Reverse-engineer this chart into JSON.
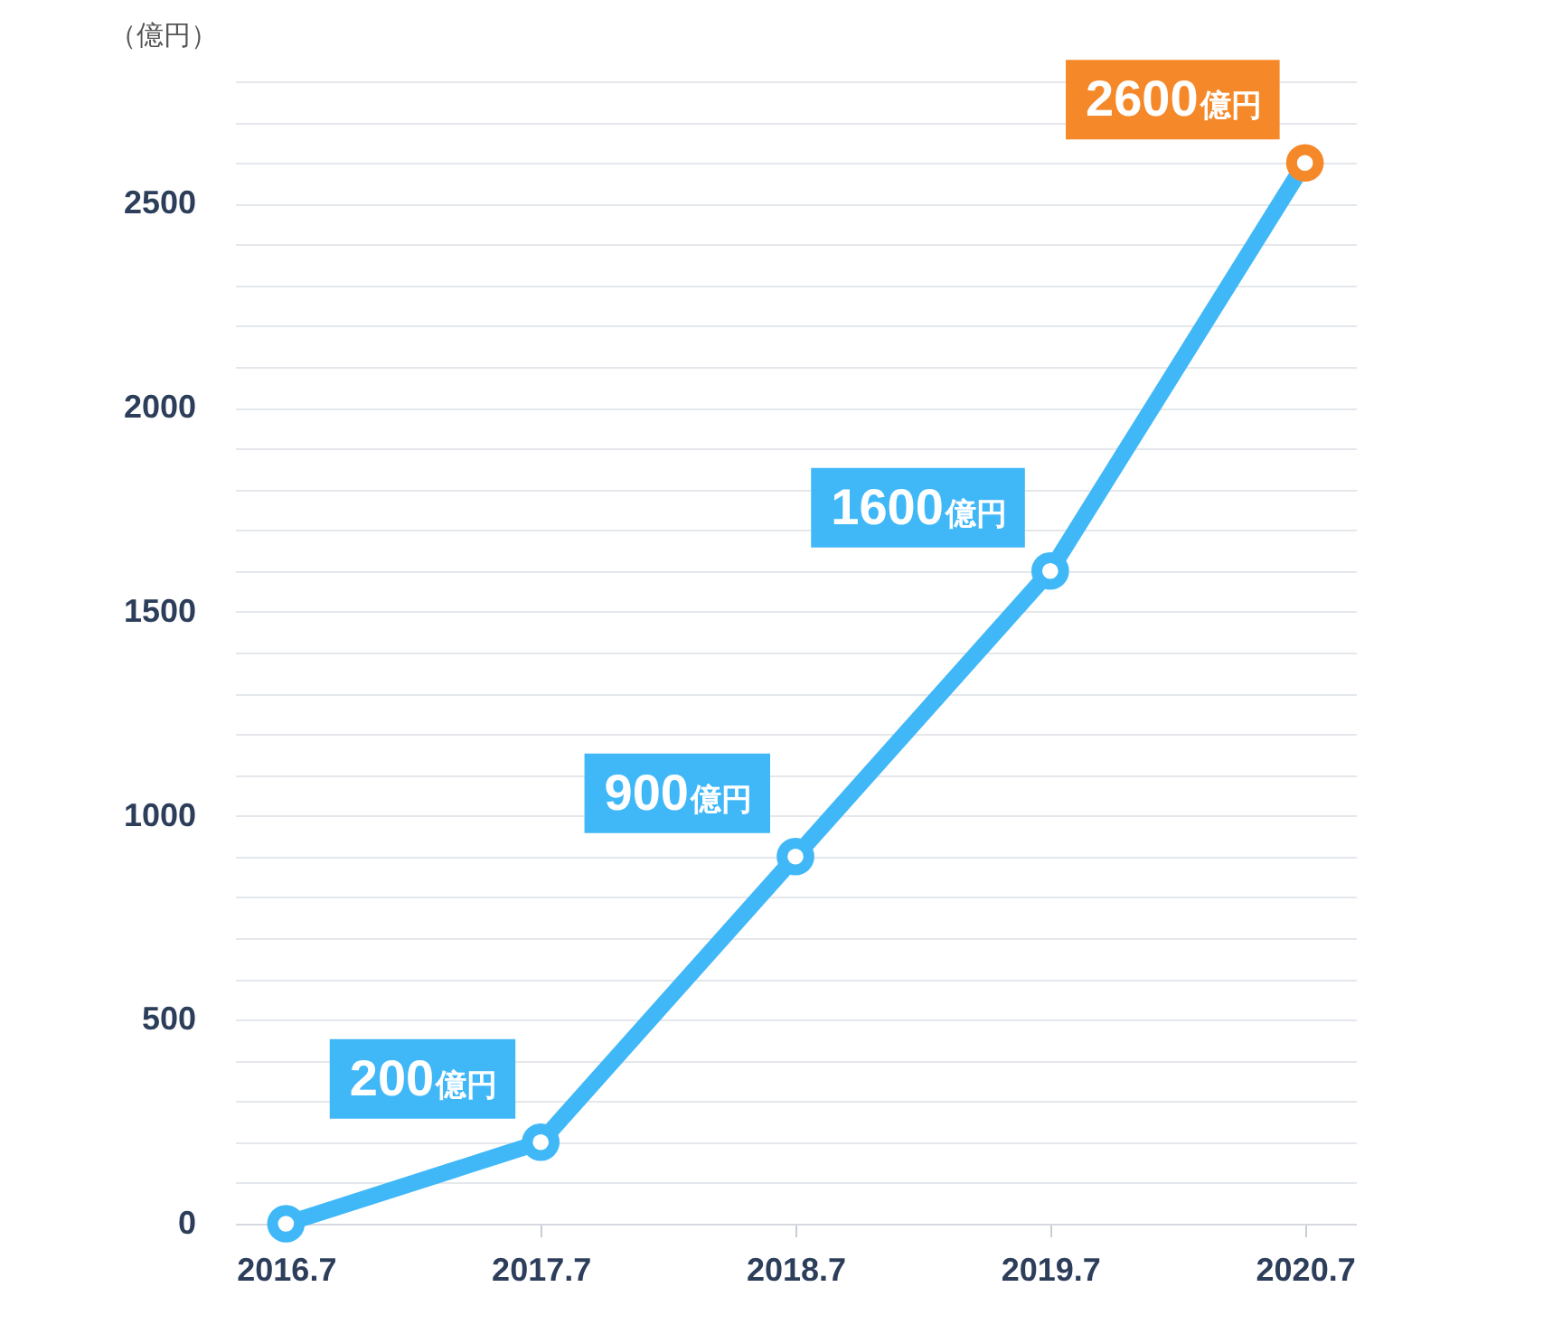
{
  "chart_data": {
    "type": "line",
    "ylabel": "（億円）",
    "categories": [
      "2016.7",
      "2017.7",
      "2018.7",
      "2019.7",
      "2020.7"
    ],
    "series": [
      {
        "color": "#40b8f8",
        "colors": [
          "#40b8f8",
          "#40b8f8",
          "#40b8f8",
          "#40b8f8",
          "#f5892a"
        ],
        "values": [
          0,
          200,
          900,
          1600,
          2600
        ],
        "value_labels": [
          null,
          "200億円",
          "900億円",
          "1600億円",
          "2600億円"
        ]
      }
    ],
    "ylim": [
      0,
      2800
    ],
    "yticks": [
      0,
      {
        "value": 100,
        "label": null
      },
      {
        "value": 200,
        "label": null
      },
      {
        "value": 300,
        "label": null
      },
      {
        "value": 400,
        "label": null
      },
      500,
      {
        "value": 600,
        "label": null
      },
      {
        "value": 700,
        "label": null
      },
      {
        "value": 800,
        "label": null
      },
      {
        "value": 900,
        "label": null
      },
      1000,
      {
        "value": 1100,
        "label": null
      },
      {
        "value": 1200,
        "label": null
      },
      {
        "value": 1300,
        "label": null
      },
      {
        "value": 1400,
        "label": null
      },
      1500,
      {
        "value": 1600,
        "label": null
      },
      {
        "value": 1700,
        "label": null
      },
      {
        "value": 1800,
        "label": null
      },
      {
        "value": 1900,
        "label": null
      },
      2000,
      {
        "value": 2100,
        "label": null
      },
      {
        "value": 2200,
        "label": null
      },
      {
        "value": 2300,
        "label": null
      },
      {
        "value": 2400,
        "label": null
      },
      2500,
      {
        "value": 2600,
        "label": null
      },
      {
        "value": 2700,
        "label": null
      },
      {
        "value": 2800,
        "label": null
      }
    ],
    "grid": "y",
    "marker": "circle"
  }
}
